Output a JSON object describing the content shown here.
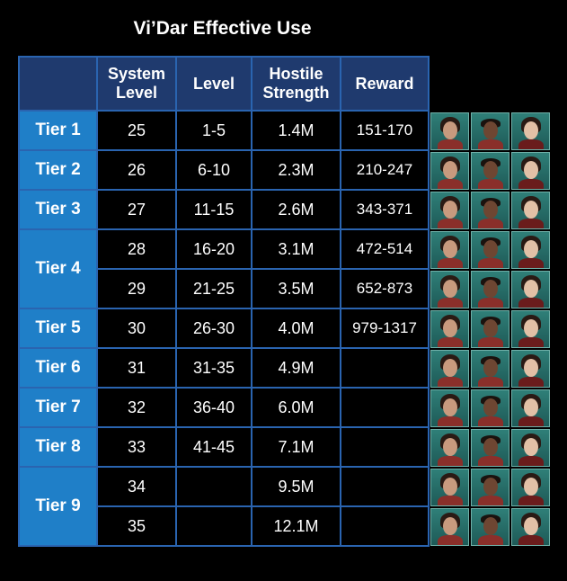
{
  "title": "Vi’Dar Effective Use",
  "table": {
    "headers": {
      "tier": "",
      "system_level": "System Level",
      "level": "Level",
      "hostile_strength": "Hostile Strength",
      "reward": "Reward"
    },
    "rows": [
      {
        "tier": "Tier 1",
        "system_level": "25",
        "level": "1-5",
        "hostile_strength": "1.4M",
        "reward": "151-170"
      },
      {
        "tier": "Tier 2",
        "system_level": "26",
        "level": "6-10",
        "hostile_strength": "2.3M",
        "reward": "210-247"
      },
      {
        "tier": "Tier 3",
        "system_level": "27",
        "level": "11-15",
        "hostile_strength": "2.6M",
        "reward": "343-371"
      },
      {
        "tier": "Tier 4",
        "system_level": "28",
        "level": "16-20",
        "hostile_strength": "3.1M",
        "reward": "472-514"
      },
      {
        "tier": "Tier 4",
        "system_level": "29",
        "level": "21-25",
        "hostile_strength": "3.5M",
        "reward": "652-873"
      },
      {
        "tier": "Tier 5",
        "system_level": "30",
        "level": "26-30",
        "hostile_strength": "4.0M",
        "reward": "979-1317"
      },
      {
        "tier": "Tier 6",
        "system_level": "31",
        "level": "31-35",
        "hostile_strength": "4.9M",
        "reward": ""
      },
      {
        "tier": "Tier 7",
        "system_level": "32",
        "level": "36-40",
        "hostile_strength": "6.0M",
        "reward": ""
      },
      {
        "tier": "Tier 8",
        "system_level": "33",
        "level": "41-45",
        "hostile_strength": "7.1M",
        "reward": ""
      },
      {
        "tier": "Tier 9",
        "system_level": "34",
        "level": "",
        "hostile_strength": "9.5M",
        "reward": ""
      },
      {
        "tier": "Tier 9",
        "system_level": "35",
        "level": "",
        "hostile_strength": "12.1M",
        "reward": ""
      }
    ]
  },
  "portraits": {
    "rows": 11,
    "officers": [
      "officer-portrait-a",
      "officer-portrait-b",
      "officer-portrait-c"
    ]
  },
  "colors": {
    "header_bg": "#1f3a6e",
    "tier_bg": "#1f7fc8",
    "grid": "#2a64b0",
    "portrait_bg": "#2f7f78"
  }
}
